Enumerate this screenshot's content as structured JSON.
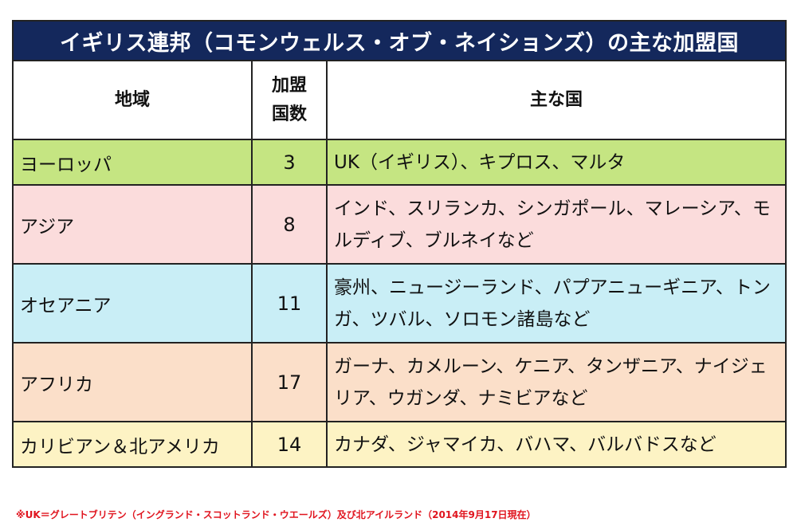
{
  "title": "イギリス連邦（コモンウェルス・オブ・ネイションズ）の主な加盟国",
  "headers": {
    "region": "地域",
    "count_line1": "加盟",
    "count_line2": "国数",
    "countries": "主な国"
  },
  "rows": [
    {
      "region": "ヨーロッパ",
      "count": "3",
      "countries": "UK（イギリス）、キプロス、マルタ",
      "color": "#c5e582"
    },
    {
      "region": "アジア",
      "count": "8",
      "countries": "インド、スリランカ、シンガポール、マレーシア、モルディブ、ブルネイなど",
      "color": "#fbdcdc"
    },
    {
      "region": "オセアニア",
      "count": "11",
      "countries": "豪州、ニュージーランド、パプアニューギニア、トンガ、ツバル、ソロモン諸島など",
      "color": "#c9eef6"
    },
    {
      "region": "アフリカ",
      "count": "17",
      "countries": "ガーナ、カメルーン、ケニア、タンザニア、ナイジェリア、ウガンダ、ナミビアなど",
      "color": "#fbdfc9"
    },
    {
      "region": "カリビアン＆北アメリカ",
      "count": "14",
      "countries": "カナダ、ジャマイカ、バハマ、バルバドスなど",
      "color": "#fdf3c4"
    }
  ],
  "title_color": "#14285c",
  "footnote": "※UK＝グレートブリテン（イングランド・スコットランド・ウエールズ）及び北アイルランド（2014年9月17日現在）",
  "footnote_color": "#e0141e"
}
